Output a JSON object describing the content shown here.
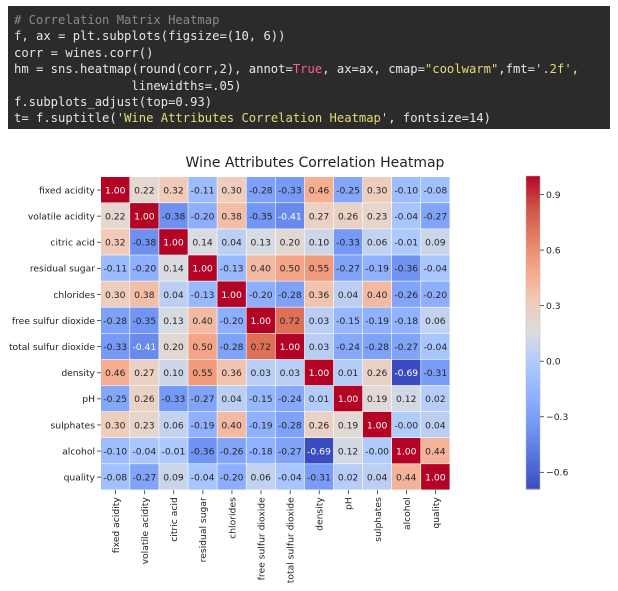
{
  "code_cell": {
    "lines": [
      [
        {
          "t": "# Correlation Matrix Heatmap",
          "c": "comment"
        }
      ],
      [
        {
          "t": "f, ax = plt.subplots(figsize=(10, 6))",
          "c": "plain"
        }
      ],
      [
        {
          "t": "corr = wines.corr()",
          "c": "plain"
        }
      ],
      [
        {
          "t": "hm = sns.heatmap(round(corr,2), annot=",
          "c": "plain"
        },
        {
          "t": "True",
          "c": "kw"
        },
        {
          "t": ", ax=ax, cmap=",
          "c": "plain"
        },
        {
          "t": "\"coolwarm\"",
          "c": "str"
        },
        {
          "t": ",fmt=",
          "c": "plain"
        },
        {
          "t": "'.2f'",
          "c": "str"
        },
        {
          "t": ",",
          "c": "plain"
        }
      ],
      [
        {
          "t": "                linewidths=.05)",
          "c": "plain"
        }
      ],
      [
        {
          "t": "f.subplots_adjust(top=0.93)",
          "c": "plain"
        }
      ],
      [
        {
          "t": "t= f.suptitle(",
          "c": "plain"
        },
        {
          "t": "'Wine Attributes Correlation Heatmap'",
          "c": "str"
        },
        {
          "t": ", fontsize=14)",
          "c": "plain"
        }
      ]
    ]
  },
  "chart_data": {
    "type": "heatmap",
    "title": "Wine Attributes Correlation Heatmap",
    "labels": [
      "fixed acidity",
      "volatile acidity",
      "citric acid",
      "residual sugar",
      "chlorides",
      "free sulfur dioxide",
      "total sulfur dioxide",
      "density",
      "pH",
      "sulphates",
      "alcohol",
      "quality"
    ],
    "values": [
      [
        1.0,
        0.22,
        0.32,
        -0.11,
        0.3,
        -0.28,
        -0.33,
        0.46,
        -0.25,
        0.3,
        -0.1,
        -0.08
      ],
      [
        0.22,
        1.0,
        -0.38,
        -0.2,
        0.38,
        -0.35,
        -0.41,
        0.27,
        0.26,
        0.23,
        -0.04,
        -0.27
      ],
      [
        0.32,
        -0.38,
        1.0,
        0.14,
        0.04,
        0.13,
        0.2,
        0.1,
        -0.33,
        0.06,
        -0.01,
        0.09
      ],
      [
        -0.11,
        -0.2,
        0.14,
        1.0,
        -0.13,
        0.4,
        0.5,
        0.55,
        -0.27,
        -0.19,
        -0.36,
        -0.04
      ],
      [
        0.3,
        0.38,
        0.04,
        -0.13,
        1.0,
        -0.2,
        -0.28,
        0.36,
        0.04,
        0.4,
        -0.26,
        -0.2
      ],
      [
        -0.28,
        -0.35,
        0.13,
        0.4,
        -0.2,
        1.0,
        0.72,
        0.03,
        -0.15,
        -0.19,
        -0.18,
        0.06
      ],
      [
        -0.33,
        -0.41,
        0.2,
        0.5,
        -0.28,
        0.72,
        1.0,
        0.03,
        -0.24,
        -0.28,
        -0.27,
        -0.04
      ],
      [
        0.46,
        0.27,
        0.1,
        0.55,
        0.36,
        0.03,
        0.03,
        1.0,
        0.01,
        0.26,
        -0.69,
        -0.31
      ],
      [
        -0.25,
        0.26,
        -0.33,
        -0.27,
        0.04,
        -0.15,
        -0.24,
        0.01,
        1.0,
        0.19,
        0.12,
        0.02
      ],
      [
        0.3,
        0.23,
        0.06,
        -0.19,
        0.4,
        -0.19,
        -0.28,
        0.26,
        0.19,
        1.0,
        -0.0,
        0.04
      ],
      [
        -0.1,
        -0.04,
        -0.01,
        -0.36,
        -0.26,
        -0.18,
        -0.27,
        -0.69,
        0.12,
        -0.0,
        1.0,
        0.44
      ],
      [
        -0.08,
        -0.27,
        0.09,
        -0.04,
        -0.2,
        0.06,
        -0.04,
        -0.31,
        0.02,
        0.04,
        0.44,
        1.0
      ]
    ],
    "colorbar_ticks": [
      0.9,
      0.6,
      0.3,
      0.0,
      -0.3,
      -0.6
    ],
    "colorbar_tick_labels": [
      "0.9",
      "0.6",
      "0.3",
      "0.0",
      "−0.3",
      "−0.6"
    ],
    "colormap": "coolwarm",
    "vmin": -0.69,
    "vmax": 1.0
  }
}
